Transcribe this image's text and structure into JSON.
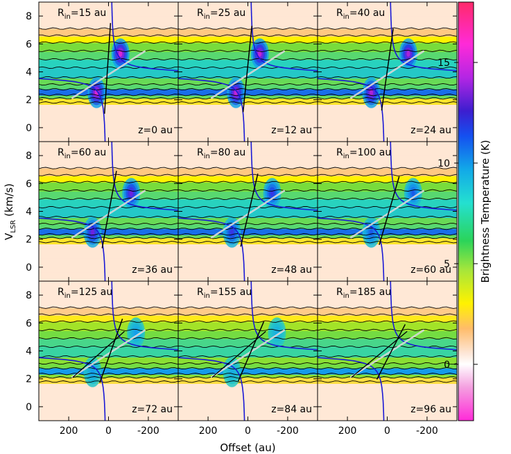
{
  "chart_data": {
    "type": "heatmap",
    "description_free": true,
    "xlabel": "Offset (au)",
    "ylabel_main": "V",
    "ylabel_sub": "LSR",
    "ylabel_unit": " (km/s)",
    "colorbar_label": "Brightness Temperature (K)",
    "colorbar_range": [
      -2.8,
      18
    ],
    "colorbar_ticks": [
      0,
      5,
      10,
      15
    ],
    "xlim": [
      350,
      -350
    ],
    "ylim": [
      -1,
      9
    ],
    "xticks": [
      200,
      0,
      -200
    ],
    "yticks": [
      0,
      2,
      4,
      6,
      8
    ],
    "systemic_velocity_kms": 3.8,
    "panels": [
      {
        "rin": "=15 au",
        "z": "z=0 au"
      },
      {
        "rin": "=25 au",
        "z": "z=12 au"
      },
      {
        "rin": "=40 au",
        "z": "z=24 au"
      },
      {
        "rin": "=60 au",
        "z": "z=36 au"
      },
      {
        "rin": "=80 au",
        "z": "z=48 au"
      },
      {
        "rin": "=100 au",
        "z": "z=60 au"
      },
      {
        "rin": "=125 au",
        "z": "z=72 au"
      },
      {
        "rin": "=155 au",
        "z": "z=84 au"
      },
      {
        "rin": "=185 au",
        "z": "z=96 au"
      }
    ],
    "rin_prefix": "R",
    "rin_sub": "in"
  }
}
